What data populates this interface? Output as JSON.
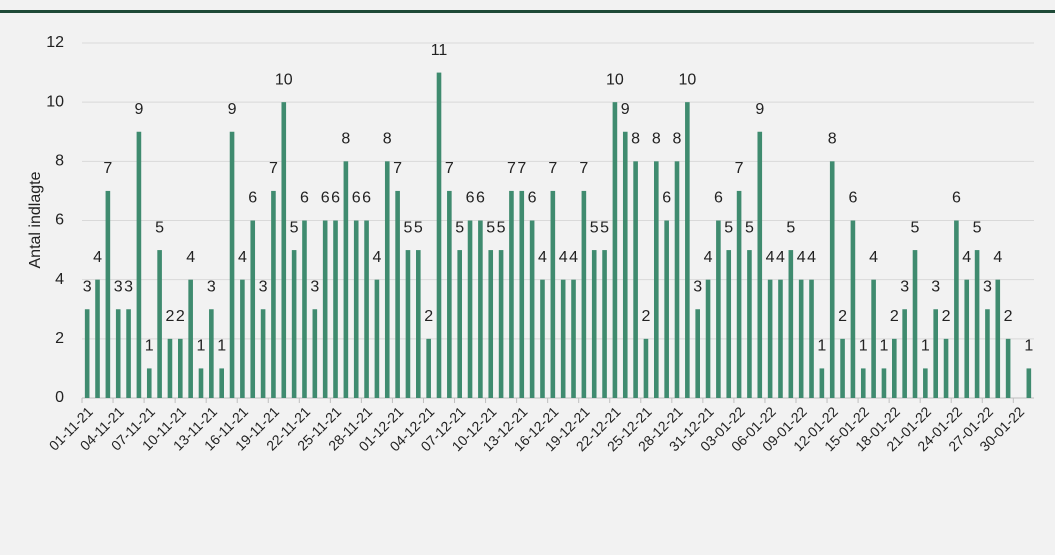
{
  "chart_data": {
    "type": "bar",
    "y_label": "Antal indlagte",
    "categories": [
      "01-11-21",
      null,
      null,
      "04-11-21",
      null,
      null,
      "07-11-21",
      null,
      null,
      "10-11-21",
      null,
      null,
      "13-11-21",
      null,
      null,
      "16-11-21",
      null,
      null,
      "19-11-21",
      null,
      null,
      "22-11-21",
      null,
      null,
      "25-11-21",
      null,
      null,
      "28-11-21",
      null,
      null,
      "01-12-21",
      null,
      null,
      "04-12-21",
      null,
      null,
      "07-12-21",
      null,
      null,
      "10-12-21",
      null,
      null,
      "13-12-21",
      null,
      null,
      "16-12-21",
      null,
      null,
      "19-12-21",
      null,
      null,
      "22-12-21",
      null,
      null,
      "25-12-21",
      null,
      null,
      "28-12-21",
      null,
      null,
      "31-12-21",
      null,
      null,
      "03-01-22",
      null,
      null,
      "06-01-22",
      null,
      null,
      "09-01-22",
      null,
      null,
      "12-01-22",
      null,
      null,
      "15-01-22",
      null,
      null,
      "18-01-22",
      null,
      null,
      "21-01-22",
      null,
      null,
      "24-01-22",
      null,
      null,
      "27-01-22",
      null,
      null,
      "30-01-22",
      null
    ],
    "values": [
      3,
      4,
      7,
      3,
      3,
      9,
      1,
      5,
      2,
      2,
      4,
      1,
      3,
      1,
      9,
      4,
      6,
      3,
      7,
      10,
      5,
      6,
      3,
      6,
      6,
      8,
      6,
      6,
      4,
      8,
      7,
      5,
      5,
      2,
      11,
      7,
      5,
      6,
      6,
      5,
      5,
      7,
      7,
      6,
      4,
      7,
      4,
      4,
      7,
      5,
      5,
      10,
      9,
      8,
      2,
      8,
      6,
      8,
      10,
      3,
      4,
      6,
      5,
      7,
      5,
      9,
      4,
      4,
      5,
      4,
      4,
      1,
      8,
      2,
      6,
      1,
      4,
      1,
      2,
      3,
      5,
      1,
      3,
      2,
      6,
      4,
      5,
      3,
      4,
      2,
      0,
      1
    ],
    "color": "#3f8b6f",
    "ylim": [
      0,
      12
    ],
    "yticks": [
      0,
      2,
      4,
      6,
      8,
      10,
      12
    ],
    "grid": true
  }
}
